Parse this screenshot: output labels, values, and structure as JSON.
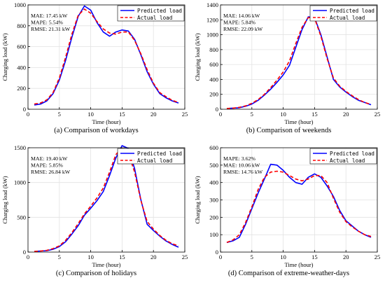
{
  "chart_data": [
    {
      "type": "line",
      "caption": "(a) Comparison of workdays",
      "xlabel": "Time (hour)",
      "ylabel": "Charging load (kW)",
      "xlim": [
        0,
        25
      ],
      "ylim": [
        0,
        1000
      ],
      "xticks": [
        0,
        5,
        10,
        15,
        20,
        25
      ],
      "yticks": [
        0,
        200,
        400,
        600,
        800,
        1000
      ],
      "grid": true,
      "legend_position": "top-right",
      "stats": [
        "MAE: 17.45 kW",
        "MAPE: 5.54%",
        "RMSE: 21.31 kW"
      ],
      "x": [
        1,
        2,
        3,
        4,
        5,
        6,
        7,
        8,
        9,
        10,
        11,
        12,
        13,
        14,
        15,
        16,
        17,
        18,
        19,
        20,
        21,
        22,
        23,
        24
      ],
      "series": [
        {
          "name": "Predicted load",
          "color": "#0000ff",
          "style": "solid",
          "values": [
            40,
            50,
            80,
            150,
            280,
            470,
            690,
            890,
            990,
            950,
            830,
            740,
            700,
            740,
            760,
            750,
            670,
            520,
            360,
            240,
            150,
            110,
            80,
            60
          ]
        },
        {
          "name": "Actual load",
          "color": "#ff0000",
          "style": "dashed",
          "values": [
            50,
            60,
            90,
            160,
            300,
            500,
            720,
            900,
            960,
            920,
            840,
            770,
            730,
            720,
            740,
            740,
            660,
            530,
            380,
            250,
            160,
            120,
            85,
            65
          ]
        }
      ]
    },
    {
      "type": "line",
      "caption": "(b) Comparison of weekends",
      "xlabel": "Time (hour)",
      "ylabel": "Charging load (kW)",
      "xlim": [
        0,
        25
      ],
      "ylim": [
        0,
        1400
      ],
      "xticks": [
        0,
        5,
        10,
        15,
        20,
        25
      ],
      "yticks": [
        0,
        200,
        400,
        600,
        800,
        1000,
        1200,
        1400
      ],
      "grid": true,
      "legend_position": "top-right",
      "stats": [
        "MAE: 14.06 kW",
        "MAPE: 5.84%",
        "RMSE: 22.09 kW"
      ],
      "x": [
        1,
        2,
        3,
        4,
        5,
        6,
        7,
        8,
        9,
        10,
        11,
        12,
        13,
        14,
        15,
        16,
        17,
        18,
        19,
        20,
        21,
        22,
        23,
        24
      ],
      "series": [
        {
          "name": "Predicted load",
          "color": "#0000ff",
          "style": "solid",
          "values": [
            10,
            15,
            20,
            40,
            70,
            120,
            190,
            270,
            360,
            460,
            590,
            830,
            1070,
            1240,
            1230,
            1000,
            700,
            400,
            300,
            230,
            170,
            120,
            90,
            60
          ]
        },
        {
          "name": "Actual load",
          "color": "#ff0000",
          "style": "dashed",
          "values": [
            10,
            15,
            25,
            45,
            80,
            130,
            200,
            290,
            390,
            500,
            650,
            880,
            1100,
            1230,
            1220,
            980,
            680,
            420,
            310,
            240,
            180,
            130,
            90,
            65
          ]
        }
      ]
    },
    {
      "type": "line",
      "caption": "(c) Comparison of holidays",
      "xlabel": "Time (hour)",
      "ylabel": "Charging load (kW)",
      "xlim": [
        0,
        25
      ],
      "ylim": [
        0,
        1500
      ],
      "xticks": [
        0,
        5,
        10,
        15,
        20,
        25
      ],
      "yticks": [
        0,
        500,
        1000,
        1500
      ],
      "grid": true,
      "legend_position": "top-right",
      "stats": [
        "MAE: 19.40 kW",
        "MAPE: 5.85%",
        "RMSE: 26.84 kW"
      ],
      "x": [
        1,
        2,
        3,
        4,
        5,
        6,
        7,
        8,
        9,
        10,
        11,
        12,
        13,
        14,
        15,
        16,
        17,
        18,
        19,
        20,
        21,
        22,
        23,
        24
      ],
      "series": [
        {
          "name": "Predicted load",
          "color": "#0000ff",
          "style": "solid",
          "values": [
            10,
            15,
            20,
            40,
            80,
            150,
            260,
            380,
            530,
            630,
            740,
            870,
            1100,
            1350,
            1530,
            1490,
            1200,
            750,
            400,
            310,
            230,
            160,
            110,
            70
          ]
        },
        {
          "name": "Actual load",
          "color": "#ff0000",
          "style": "dashed",
          "values": [
            10,
            15,
            25,
            50,
            90,
            170,
            280,
            410,
            550,
            660,
            780,
            920,
            1150,
            1400,
            1500,
            1420,
            1150,
            740,
            440,
            330,
            240,
            170,
            120,
            90
          ]
        }
      ]
    },
    {
      "type": "line",
      "caption": "(d) Comparison of extreme-weather-days",
      "xlabel": "Time (hour)",
      "ylabel": "Charging load (kW)",
      "xlim": [
        0,
        25
      ],
      "ylim": [
        0,
        600
      ],
      "xticks": [
        0,
        5,
        10,
        15,
        20,
        25
      ],
      "yticks": [
        0,
        100,
        200,
        300,
        400,
        500,
        600
      ],
      "grid": true,
      "legend_position": "top-right",
      "stats": [
        "MAPE: 3.62%",
        "MAE: 10.06 kW",
        "RMSE: 14.76 kW"
      ],
      "x": [
        1,
        2,
        3,
        4,
        5,
        6,
        7,
        8,
        9,
        10,
        11,
        12,
        13,
        14,
        15,
        16,
        17,
        18,
        19,
        20,
        21,
        22,
        23,
        24
      ],
      "series": [
        {
          "name": "Predicted load",
          "color": "#0000ff",
          "style": "solid",
          "values": [
            55,
            65,
            85,
            160,
            250,
            340,
            420,
            505,
            500,
            470,
            430,
            400,
            390,
            430,
            450,
            430,
            380,
            320,
            240,
            180,
            150,
            120,
            100,
            85
          ]
        },
        {
          "name": "Actual load",
          "color": "#ff0000",
          "style": "dashed",
          "values": [
            55,
            70,
            100,
            170,
            260,
            360,
            430,
            460,
            465,
            460,
            440,
            420,
            410,
            420,
            440,
            440,
            400,
            310,
            230,
            175,
            145,
            120,
            100,
            90
          ]
        }
      ]
    }
  ]
}
